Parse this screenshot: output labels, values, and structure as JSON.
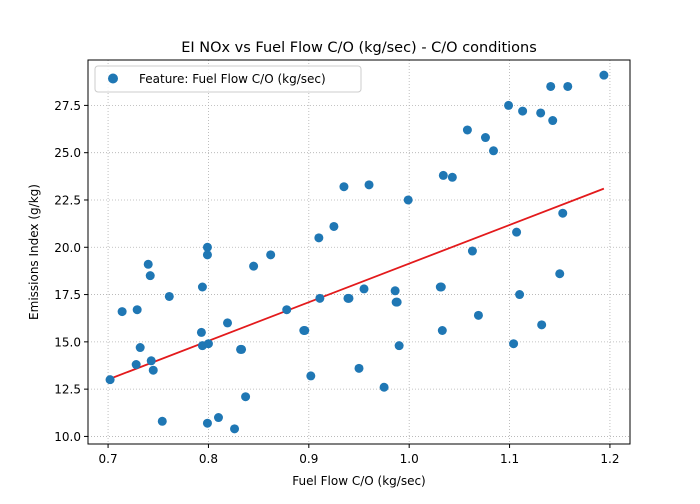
{
  "chart_data": {
    "type": "scatter",
    "title": "EI NOx vs Fuel Flow C/O (kg/sec) - C/O conditions",
    "xlabel": "Fuel Flow C/O (kg/sec)",
    "ylabel": "Emissions Index (g/kg)",
    "xlim": [
      0.68,
      1.22
    ],
    "ylim": [
      9.6,
      29.9
    ],
    "xticks": [
      "0.7",
      "0.8",
      "0.9",
      "1.0",
      "1.1",
      "1.2"
    ],
    "yticks": [
      "10.0",
      "12.5",
      "15.0",
      "17.5",
      "20.0",
      "22.5",
      "25.0",
      "27.5"
    ],
    "grid": true,
    "legend_position": "top-left",
    "series": [
      {
        "name": "Feature: Fuel Flow C/O (kg/sec)",
        "color": "#1f77b4",
        "points": [
          [
            0.702,
            13.0
          ],
          [
            0.714,
            16.6
          ],
          [
            0.728,
            13.8
          ],
          [
            0.729,
            16.7
          ],
          [
            0.732,
            14.7
          ],
          [
            0.74,
            19.1
          ],
          [
            0.742,
            18.5
          ],
          [
            0.743,
            14.0
          ],
          [
            0.745,
            13.5
          ],
          [
            0.754,
            10.8
          ],
          [
            0.761,
            17.4
          ],
          [
            0.793,
            15.5
          ],
          [
            0.794,
            17.9
          ],
          [
            0.794,
            14.8
          ],
          [
            0.799,
            10.7
          ],
          [
            0.799,
            20.0
          ],
          [
            0.799,
            19.6
          ],
          [
            0.8,
            14.9
          ],
          [
            0.81,
            11.0
          ],
          [
            0.819,
            16.0
          ],
          [
            0.826,
            10.4
          ],
          [
            0.832,
            14.6
          ],
          [
            0.833,
            14.6
          ],
          [
            0.837,
            12.1
          ],
          [
            0.845,
            19.0
          ],
          [
            0.862,
            19.6
          ],
          [
            0.878,
            16.7
          ],
          [
            0.895,
            15.6
          ],
          [
            0.896,
            15.6
          ],
          [
            0.902,
            13.2
          ],
          [
            0.91,
            20.5
          ],
          [
            0.911,
            17.3
          ],
          [
            0.925,
            21.1
          ],
          [
            0.935,
            23.2
          ],
          [
            0.939,
            17.3
          ],
          [
            0.94,
            17.3
          ],
          [
            0.95,
            13.6
          ],
          [
            0.955,
            17.8
          ],
          [
            0.96,
            23.3
          ],
          [
            0.975,
            12.6
          ],
          [
            0.986,
            17.7
          ],
          [
            0.987,
            17.1
          ],
          [
            0.988,
            17.1
          ],
          [
            0.99,
            14.8
          ],
          [
            0.999,
            22.5
          ],
          [
            1.031,
            17.9
          ],
          [
            1.032,
            17.9
          ],
          [
            1.033,
            15.6
          ],
          [
            1.034,
            23.8
          ],
          [
            1.043,
            23.7
          ],
          [
            1.058,
            26.2
          ],
          [
            1.063,
            19.8
          ],
          [
            1.069,
            16.4
          ],
          [
            1.076,
            25.8
          ],
          [
            1.084,
            25.1
          ],
          [
            1.099,
            27.5
          ],
          [
            1.104,
            14.9
          ],
          [
            1.107,
            20.8
          ],
          [
            1.11,
            17.5
          ],
          [
            1.113,
            27.2
          ],
          [
            1.131,
            27.1
          ],
          [
            1.132,
            15.9
          ],
          [
            1.141,
            28.5
          ],
          [
            1.143,
            26.7
          ],
          [
            1.15,
            18.6
          ],
          [
            1.153,
            21.8
          ],
          [
            1.158,
            28.5
          ],
          [
            1.194,
            29.1
          ]
        ]
      }
    ],
    "trendline": {
      "color": "#e31a1c",
      "x": [
        0.702,
        1.194
      ],
      "y": [
        13.05,
        23.1
      ]
    }
  }
}
